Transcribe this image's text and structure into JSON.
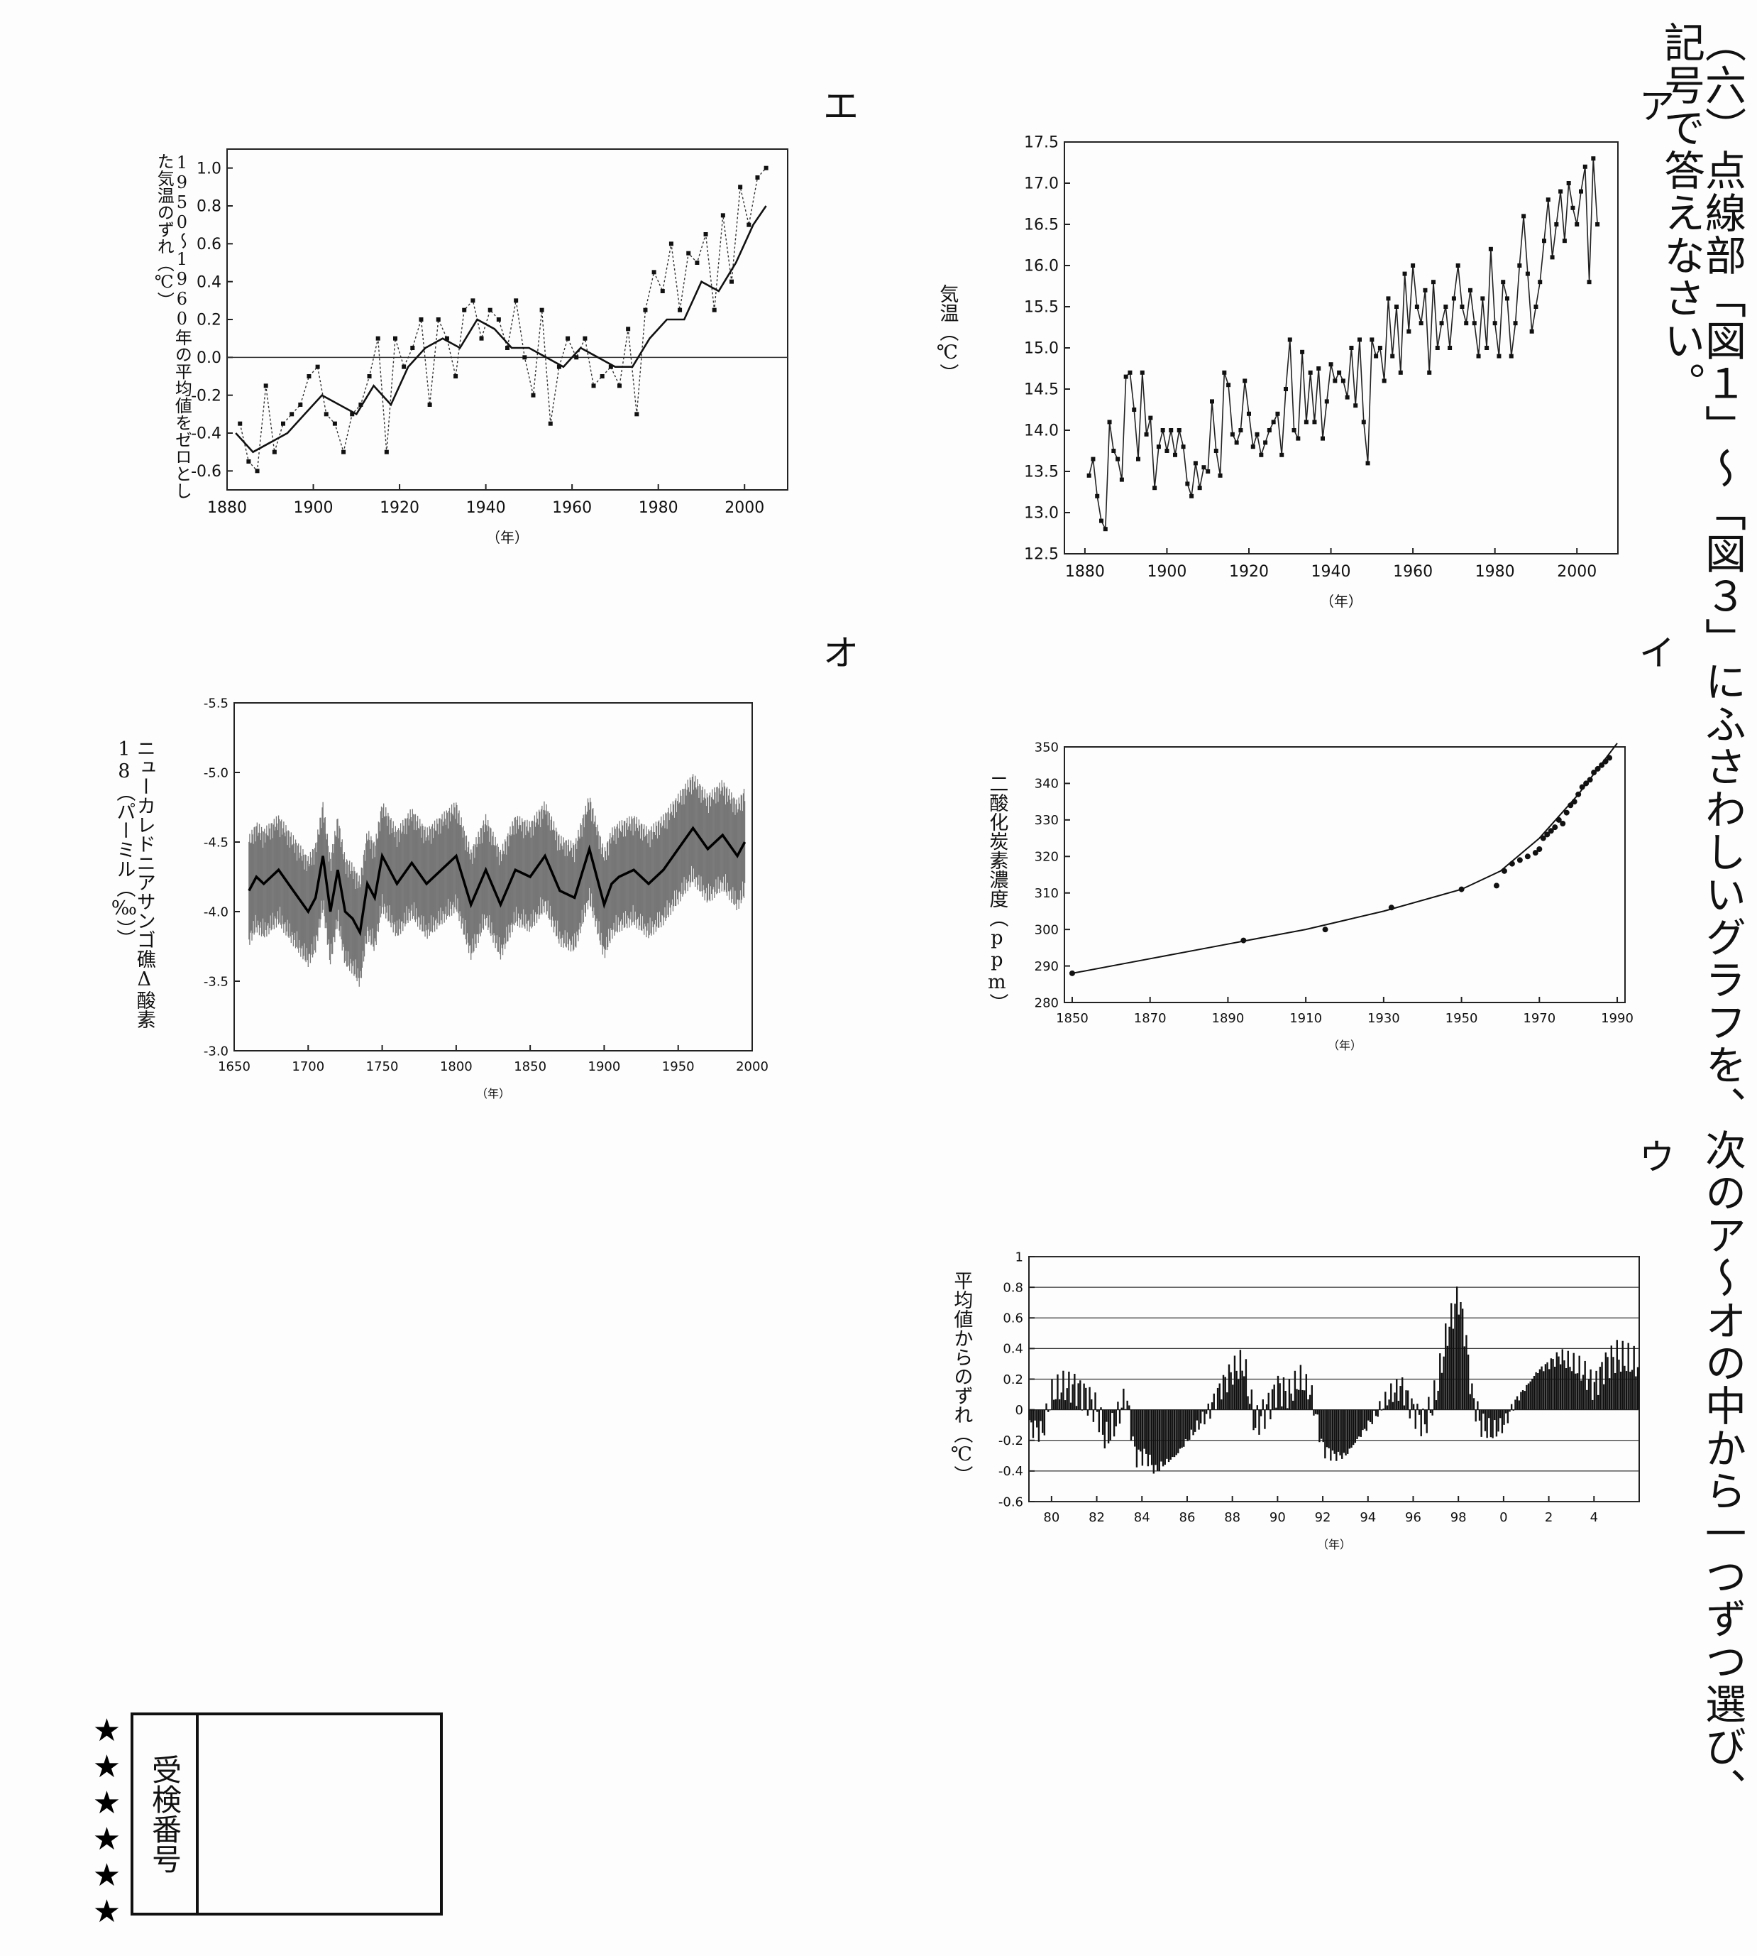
{
  "question": "（六）点線部「図１」～「図３」にふさわしいグラフを、次のア～オの中から一つずつ選び、記号で答えなさい。",
  "choices": {
    "a": "ア",
    "i": "イ",
    "u": "ウ",
    "e": "エ",
    "o": "オ"
  },
  "exam_box": {
    "label": "受検番号",
    "stars": "★★★★★★"
  },
  "chart_data": [
    {
      "id": "a",
      "type": "line",
      "ylabel": "気温（℃）",
      "xlabel": "（年）",
      "xlim": [
        1875,
        2010
      ],
      "ylim": [
        12.5,
        17.5
      ],
      "xticks": [
        1880,
        1900,
        1920,
        1940,
        1960,
        1980,
        2000
      ],
      "yticks": [
        12.5,
        13.0,
        13.5,
        14.0,
        14.5,
        15.0,
        15.5,
        16.0,
        16.5,
        17.0,
        17.5
      ],
      "series": [
        {
          "x": [
            1881,
            1882,
            1883,
            1884,
            1885,
            1886,
            1887,
            1888,
            1889,
            1890,
            1891,
            1892,
            1893,
            1894,
            1895,
            1896,
            1897,
            1898,
            1899,
            1900,
            1901,
            1902,
            1903,
            1904,
            1905,
            1906,
            1907,
            1908,
            1909,
            1910,
            1911,
            1912,
            1913,
            1914,
            1915,
            1916,
            1917,
            1918,
            1919,
            1920,
            1921,
            1922,
            1923,
            1924,
            1925,
            1926,
            1927,
            1928,
            1929,
            1930,
            1931,
            1932,
            1933,
            1934,
            1935,
            1936,
            1937,
            1938,
            1939,
            1940,
            1941,
            1942,
            1943,
            1944,
            1945,
            1946,
            1947,
            1948,
            1949,
            1950,
            1951,
            1952,
            1953,
            1954,
            1955,
            1956,
            1957,
            1958,
            1959,
            1960,
            1961,
            1962,
            1963,
            1964,
            1965,
            1966,
            1967,
            1968,
            1969,
            1970,
            1971,
            1972,
            1973,
            1974,
            1975,
            1976,
            1977,
            1978,
            1979,
            1980,
            1981,
            1982,
            1983,
            1984,
            1985,
            1986,
            1987,
            1988,
            1989,
            1990,
            1991,
            1992,
            1993,
            1994,
            1995,
            1996,
            1997,
            1998,
            1999,
            2000,
            2001,
            2002,
            2003,
            2004,
            2005
          ],
          "y": [
            13.45,
            13.65,
            13.2,
            12.9,
            12.8,
            14.1,
            13.75,
            13.65,
            13.4,
            14.65,
            14.7,
            14.25,
            13.65,
            14.7,
            13.95,
            14.15,
            13.3,
            13.8,
            14.0,
            13.75,
            14.0,
            13.7,
            14.0,
            13.8,
            13.35,
            13.2,
            13.6,
            13.3,
            13.55,
            13.5,
            14.35,
            13.75,
            13.45,
            14.7,
            14.55,
            13.95,
            13.85,
            14.0,
            14.6,
            14.2,
            13.8,
            13.95,
            13.7,
            13.85,
            14.0,
            14.1,
            14.2,
            13.7,
            14.5,
            15.1,
            14.0,
            13.9,
            14.95,
            14.1,
            14.7,
            14.1,
            14.75,
            13.9,
            14.35,
            14.8,
            14.6,
            14.7,
            14.6,
            14.4,
            15.0,
            14.3,
            15.1,
            14.1,
            13.6,
            15.1,
            14.9,
            15.0,
            14.6,
            15.6,
            14.9,
            15.5,
            14.7,
            15.9,
            15.2,
            16.0,
            15.5,
            15.3,
            15.7,
            14.7,
            15.8,
            15.0,
            15.3,
            15.5,
            15.0,
            15.6,
            16.0,
            15.5,
            15.3,
            15.7,
            15.3,
            14.9,
            15.6,
            15.0,
            16.2,
            15.3,
            14.9,
            15.8,
            15.6,
            14.9,
            15.3,
            16.0,
            16.6,
            15.9,
            15.2,
            15.5,
            15.8,
            16.3,
            16.8,
            16.1,
            16.5,
            16.9,
            16.3,
            17.0,
            16.7,
            16.5,
            16.9,
            17.2,
            15.8,
            17.3,
            16.5
          ]
        }
      ]
    },
    {
      "id": "i",
      "type": "scatter",
      "ylabel": "二酸化炭素濃度（ppm）",
      "xlabel": "（年）",
      "xlim": [
        1848,
        1992
      ],
      "ylim": [
        280,
        350
      ],
      "xticks": [
        1850,
        1870,
        1890,
        1910,
        1930,
        1950,
        1970,
        1990
      ],
      "yticks": [
        280,
        290,
        300,
        310,
        320,
        330,
        340,
        350
      ],
      "points": {
        "x": [
          1850,
          1894,
          1915,
          1932,
          1950,
          1959,
          1961,
          1963,
          1965,
          1967,
          1969,
          1970,
          1971,
          1972,
          1973,
          1974,
          1975,
          1976,
          1977,
          1978,
          1979,
          1980,
          1981,
          1982,
          1983,
          1984,
          1985,
          1986,
          1987,
          1988
        ],
        "y": [
          288,
          297,
          300,
          306,
          311,
          312,
          316,
          318,
          319,
          320,
          321,
          322,
          325,
          326,
          327,
          328,
          330,
          329,
          332,
          334,
          335,
          337,
          339,
          340,
          341,
          343,
          344,
          345,
          346,
          347
        ]
      },
      "fit": {
        "x": [
          1850,
          1870,
          1890,
          1910,
          1930,
          1950,
          1960,
          1970,
          1980,
          1990
        ],
        "y": [
          288,
          292,
          296,
          300,
          305,
          311,
          316,
          325,
          337,
          351
        ]
      }
    },
    {
      "id": "u",
      "type": "bar",
      "ylabel": "平均値からのずれ（℃）",
      "xlabel": "（年）",
      "xlim": [
        1979,
        2006
      ],
      "ylim": [
        -0.6,
        1.0
      ],
      "xtick_labels": [
        "80",
        "82",
        "84",
        "86",
        "88",
        "90",
        "92",
        "94",
        "96",
        "98",
        "0",
        "2",
        "4"
      ],
      "xticks": [
        1980,
        1982,
        1984,
        1986,
        1988,
        1990,
        1992,
        1994,
        1996,
        1998,
        2000,
        2002,
        2004
      ],
      "yticks": [
        -0.6,
        -0.4,
        -0.2,
        0,
        0.2,
        0.4,
        0.6,
        0.8,
        1.0
      ],
      "anchors": {
        "x": [
          1979.0,
          1979.6,
          1980.0,
          1980.5,
          1981.0,
          1981.5,
          1982.0,
          1982.4,
          1982.8,
          1983.3,
          1983.7,
          1984.2,
          1984.6,
          1985.0,
          1985.5,
          1986.0,
          1986.5,
          1987.0,
          1987.5,
          1988.0,
          1988.5,
          1989.0,
          1989.5,
          1990.0,
          1990.5,
          1991.0,
          1991.5,
          1992.0,
          1992.5,
          1993.0,
          1993.5,
          1994.0,
          1994.5,
          1995.0,
          1995.5,
          1996.0,
          1996.5,
          1997.0,
          1997.5,
          1998.0,
          1998.3,
          1998.6,
          1999.0,
          1999.5,
          2000.0,
          2000.5,
          2001.0,
          2001.5,
          2002.0,
          2002.5,
          2003.0,
          2003.5,
          2004.0,
          2004.5,
          2005.0,
          2005.8
        ],
        "y": [
          -0.1,
          -0.15,
          0.1,
          0.15,
          0.15,
          0.1,
          0.0,
          -0.2,
          -0.1,
          0.1,
          -0.3,
          -0.3,
          -0.4,
          -0.35,
          -0.3,
          -0.2,
          -0.1,
          0.0,
          0.15,
          0.25,
          0.3,
          -0.1,
          0.0,
          0.15,
          0.1,
          0.2,
          0.1,
          -0.25,
          -0.3,
          -0.3,
          -0.2,
          -0.1,
          0.0,
          0.1,
          0.15,
          0.0,
          -0.1,
          0.1,
          0.5,
          0.75,
          0.5,
          0.1,
          -0.1,
          -0.15,
          -0.1,
          0.05,
          0.15,
          0.25,
          0.3,
          0.35,
          0.3,
          0.25,
          0.15,
          0.3,
          0.35,
          0.3
        ]
      }
    },
    {
      "id": "e",
      "type": "line",
      "ylabel": "1950～1960年の平均値をゼロとした気温のずれ（℃）",
      "xlabel": "（年）",
      "xlim": [
        1880,
        2010
      ],
      "ylim": [
        -0.7,
        1.1
      ],
      "xticks": [
        1880,
        1900,
        1920,
        1940,
        1960,
        1980,
        2000
      ],
      "yticks": [
        -0.6,
        -0.4,
        -0.2,
        0,
        0.2,
        0.4,
        0.6,
        0.8,
        1.0
      ],
      "series": [
        {
          "name": "annual",
          "style": "dotted",
          "x": [
            1883,
            1885,
            1887,
            1889,
            1891,
            1893,
            1895,
            1897,
            1899,
            1901,
            1903,
            1905,
            1907,
            1909,
            1911,
            1913,
            1915,
            1917,
            1919,
            1921,
            1923,
            1925,
            1927,
            1929,
            1931,
            1933,
            1935,
            1937,
            1939,
            1941,
            1943,
            1945,
            1947,
            1949,
            1951,
            1953,
            1955,
            1957,
            1959,
            1961,
            1963,
            1965,
            1967,
            1969,
            1971,
            1973,
            1975,
            1977,
            1979,
            1981,
            1983,
            1985,
            1987,
            1989,
            1991,
            1993,
            1995,
            1997,
            1999,
            2001,
            2003,
            2005
          ],
          "y": [
            -0.35,
            -0.55,
            -0.6,
            -0.15,
            -0.5,
            -0.35,
            -0.3,
            -0.25,
            -0.1,
            -0.05,
            -0.3,
            -0.35,
            -0.5,
            -0.3,
            -0.25,
            -0.1,
            0.1,
            -0.5,
            0.1,
            -0.05,
            0.05,
            0.2,
            -0.25,
            0.2,
            0.1,
            -0.1,
            0.25,
            0.3,
            0.1,
            0.25,
            0.2,
            0.05,
            0.3,
            0.0,
            -0.2,
            0.25,
            -0.35,
            -0.05,
            0.1,
            0.0,
            0.1,
            -0.15,
            -0.1,
            -0.05,
            -0.15,
            0.15,
            -0.3,
            0.25,
            0.45,
            0.35,
            0.6,
            0.25,
            0.55,
            0.5,
            0.65,
            0.25,
            0.75,
            0.4,
            0.9,
            0.7,
            0.95,
            1.0
          ]
        },
        {
          "name": "smoothed",
          "style": "solid",
          "x": [
            1882,
            1886,
            1890,
            1894,
            1898,
            1902,
            1906,
            1910,
            1914,
            1918,
            1922,
            1926,
            1930,
            1934,
            1938,
            1942,
            1946,
            1950,
            1954,
            1958,
            1962,
            1966,
            1970,
            1974,
            1978,
            1982,
            1986,
            1990,
            1994,
            1998,
            2002,
            2005
          ],
          "y": [
            -0.4,
            -0.5,
            -0.45,
            -0.4,
            -0.3,
            -0.2,
            -0.25,
            -0.3,
            -0.15,
            -0.25,
            -0.05,
            0.05,
            0.1,
            0.05,
            0.2,
            0.15,
            0.05,
            0.05,
            0.0,
            -0.05,
            0.05,
            0.0,
            -0.05,
            -0.05,
            0.1,
            0.2,
            0.2,
            0.4,
            0.35,
            0.5,
            0.7,
            0.8
          ]
        }
      ]
    },
    {
      "id": "o",
      "type": "line",
      "ylabel": "ニューカレドニアサンゴ礁Δ酸素18（パーミル（‰））",
      "xlabel": "（年）",
      "xlim": [
        1650,
        2000
      ],
      "ylim": [
        -3.0,
        -5.5
      ],
      "xticks": [
        1650,
        1700,
        1750,
        1800,
        1850,
        1900,
        1950,
        2000
      ],
      "yticks": [
        -3.0,
        -3.5,
        -4.0,
        -4.5,
        -5.0,
        -5.5
      ],
      "series": [
        {
          "name": "smoothed",
          "style": "solid",
          "x": [
            1660,
            1665,
            1670,
            1680,
            1690,
            1700,
            1705,
            1710,
            1715,
            1720,
            1725,
            1730,
            1735,
            1740,
            1745,
            1750,
            1760,
            1770,
            1780,
            1790,
            1800,
            1810,
            1820,
            1830,
            1840,
            1850,
            1860,
            1870,
            1880,
            1890,
            1900,
            1905,
            1910,
            1920,
            1930,
            1940,
            1950,
            1960,
            1970,
            1980,
            1990,
            1995
          ],
          "y": [
            -4.15,
            -4.25,
            -4.2,
            -4.3,
            -4.15,
            -4.0,
            -4.1,
            -4.4,
            -4.0,
            -4.3,
            -4.0,
            -3.95,
            -3.85,
            -4.2,
            -4.1,
            -4.4,
            -4.2,
            -4.35,
            -4.2,
            -4.3,
            -4.4,
            -4.05,
            -4.3,
            -4.05,
            -4.3,
            -4.25,
            -4.4,
            -4.15,
            -4.1,
            -4.45,
            -4.05,
            -4.2,
            -4.25,
            -4.3,
            -4.2,
            -4.3,
            -4.45,
            -4.6,
            -4.45,
            -4.55,
            -4.4,
            -4.5
          ]
        }
      ]
    }
  ]
}
